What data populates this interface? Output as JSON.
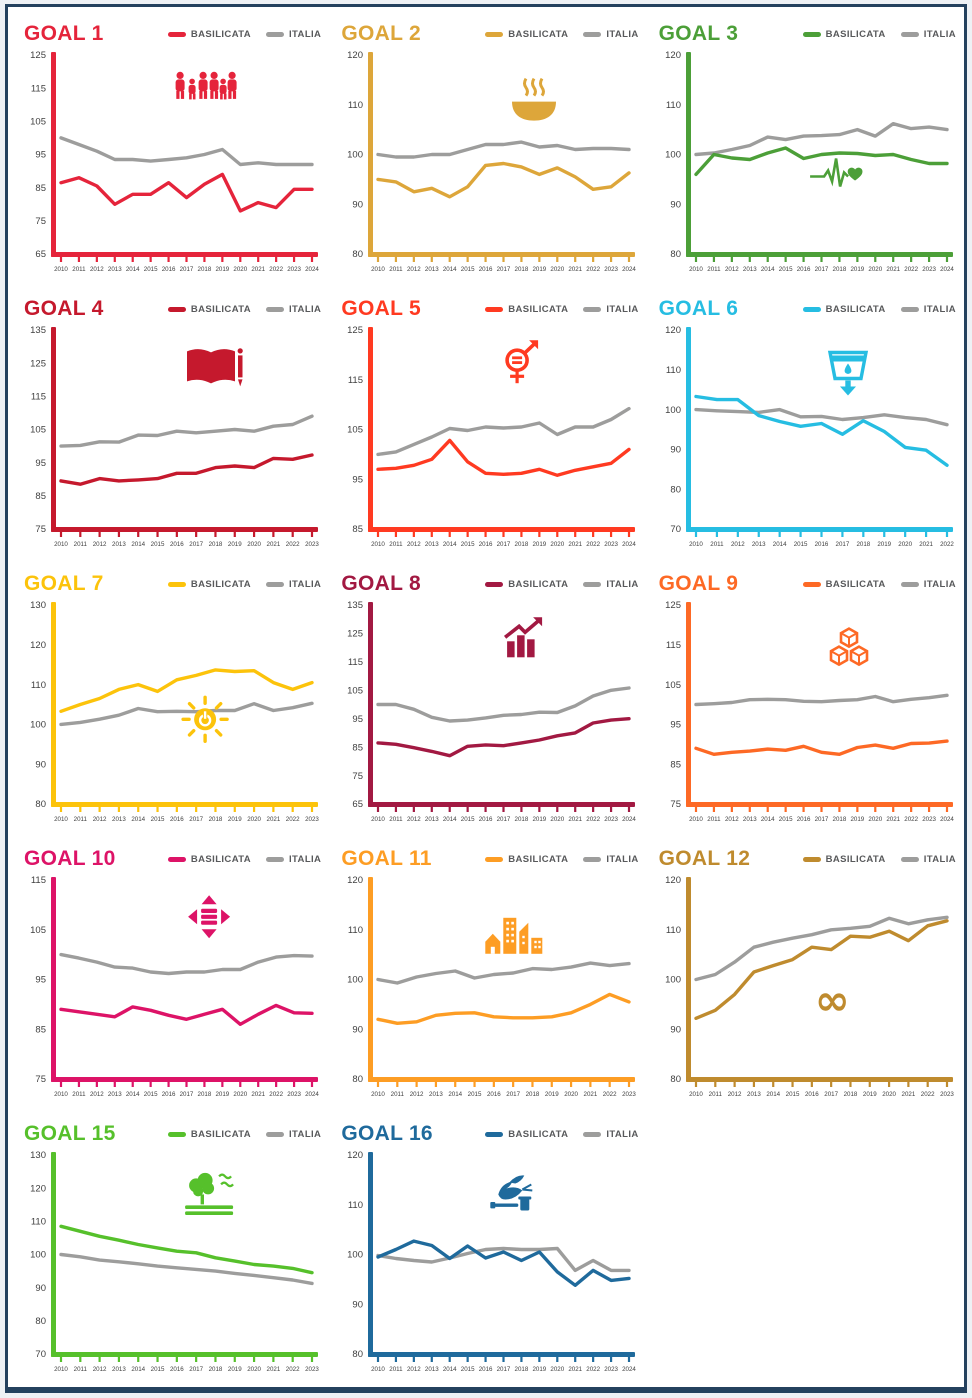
{
  "page": {
    "frame_color": "#24415e",
    "background": "#ffffff"
  },
  "legend": {
    "basilicata_label": "BASILICATA",
    "italia_label": "ITALIA",
    "italia_color": "#9d9d9c",
    "label_color": "#58595b"
  },
  "chart_data": [
    {
      "id": "goal-1",
      "title": "GOAL 1",
      "color": "#e5243b",
      "icon": "family-icon",
      "type": "line",
      "ylim": [
        65,
        125
      ],
      "yticks": [
        65,
        75,
        85,
        95,
        105,
        115,
        125
      ],
      "icon_x": 0.62,
      "icon_y": 0.1,
      "x": [
        "2010",
        "2011",
        "2012",
        "2013",
        "2014",
        "2015",
        "2016",
        "2017",
        "2018",
        "2019",
        "2020",
        "2021",
        "2022",
        "2023",
        "2024"
      ],
      "series": [
        {
          "name": "BASILICATA",
          "values": [
            86.5,
            88,
            85.5,
            80,
            83,
            83,
            86.5,
            82,
            86,
            89,
            78,
            80.5,
            79,
            84.5,
            84.5
          ]
        },
        {
          "name": "ITALIA",
          "values": [
            100,
            98,
            96,
            93.5,
            93.5,
            93,
            93.5,
            94,
            95,
            96.5,
            92,
            92.5,
            92,
            92,
            92
          ]
        }
      ]
    },
    {
      "id": "goal-2",
      "title": "GOAL 2",
      "color": "#dda63a",
      "icon": "bowl-icon",
      "type": "line",
      "ylim": [
        80,
        120
      ],
      "yticks": [
        80,
        90,
        100,
        110,
        120
      ],
      "icon_x": 0.68,
      "icon_y": 0.14,
      "x": [
        "2010",
        "2011",
        "2012",
        "2013",
        "2014",
        "2015",
        "2016",
        "2017",
        "2018",
        "2019",
        "2020",
        "2021",
        "2022",
        "2023",
        "2024"
      ],
      "series": [
        {
          "name": "BASILICATA",
          "values": [
            95,
            94.5,
            92.5,
            93.2,
            91.5,
            93.5,
            97.8,
            98.2,
            97.5,
            96,
            97.3,
            95.5,
            93,
            93.5,
            96.3
          ]
        },
        {
          "name": "ITALIA",
          "values": [
            100,
            99.5,
            99.5,
            100,
            100,
            101,
            102,
            102,
            102.5,
            101.5,
            101.8,
            101,
            101.2,
            101.2,
            101
          ]
        }
      ]
    },
    {
      "id": "goal-3",
      "title": "GOAL 3",
      "color": "#4c9f38",
      "icon": "heartbeat-icon",
      "type": "line",
      "ylim": [
        80,
        120
      ],
      "yticks": [
        80,
        90,
        100,
        110,
        120
      ],
      "icon_x": 0.62,
      "icon_y": 0.62,
      "x": [
        "2010",
        "2011",
        "2012",
        "2013",
        "2014",
        "2015",
        "2016",
        "2017",
        "2018",
        "2019",
        "2020",
        "2021",
        "2022",
        "2023",
        "2024"
      ],
      "series": [
        {
          "name": "BASILICATA",
          "values": [
            96,
            100,
            99.3,
            99,
            100.3,
            101.3,
            99.2,
            100,
            100.3,
            100.2,
            99.8,
            100,
            99,
            98.2,
            98.2
          ]
        },
        {
          "name": "ITALIA",
          "values": [
            100,
            100.3,
            101,
            101.8,
            103.5,
            103,
            103.7,
            103.8,
            104,
            105,
            103.7,
            106.2,
            105.2,
            105.5,
            105
          ]
        }
      ]
    },
    {
      "id": "goal-4",
      "title": "GOAL 4",
      "color": "#c5192d",
      "icon": "book-icon",
      "type": "line",
      "ylim": [
        75,
        135
      ],
      "yticks": [
        75,
        85,
        95,
        105,
        115,
        125,
        135
      ],
      "icon_x": 0.66,
      "icon_y": 0.1,
      "x": [
        "2010",
        "2011",
        "2012",
        "2013",
        "2014",
        "2015",
        "2016",
        "2017",
        "2018",
        "2019",
        "2020",
        "2021",
        "2022",
        "2023"
      ],
      "series": [
        {
          "name": "BASILICATA",
          "values": [
            89.5,
            88.5,
            90.2,
            89.5,
            89.8,
            90.2,
            91.8,
            91.8,
            93.5,
            94,
            93.5,
            96.3,
            96,
            97.3
          ]
        },
        {
          "name": "ITALIA",
          "values": [
            100,
            100.2,
            101.3,
            101.2,
            103.3,
            103.2,
            104.5,
            104,
            104.5,
            105,
            104.5,
            106,
            106.5,
            109
          ]
        }
      ]
    },
    {
      "id": "goal-5",
      "title": "GOAL 5",
      "color": "#ff3a21",
      "icon": "gender-icon",
      "type": "line",
      "ylim": [
        85,
        125
      ],
      "yticks": [
        85,
        95,
        105,
        115,
        125
      ],
      "icon_x": 0.62,
      "icon_y": 0.06,
      "x": [
        "2010",
        "2011",
        "2012",
        "2013",
        "2014",
        "2015",
        "2016",
        "2017",
        "2018",
        "2019",
        "2020",
        "2021",
        "2022",
        "2023",
        "2024"
      ],
      "series": [
        {
          "name": "BASILICATA",
          "values": [
            97,
            97.2,
            97.8,
            99,
            102.8,
            98.5,
            96.2,
            96,
            96.2,
            97,
            95.8,
            96.8,
            97.5,
            98.2,
            101
          ]
        },
        {
          "name": "ITALIA",
          "values": [
            100,
            100.5,
            102,
            103.5,
            105.2,
            104.8,
            105.5,
            105.3,
            105.5,
            106.3,
            104,
            105.5,
            105.5,
            107,
            109.2
          ]
        }
      ]
    },
    {
      "id": "goal-6",
      "title": "GOAL 6",
      "color": "#26bde2",
      "icon": "water-icon",
      "type": "line",
      "ylim": [
        70,
        120
      ],
      "yticks": [
        70,
        80,
        90,
        100,
        110,
        120
      ],
      "icon_x": 0.66,
      "icon_y": 0.12,
      "x": [
        "2010",
        "2011",
        "2012",
        "2013",
        "2014",
        "2015",
        "2016",
        "2017",
        "2018",
        "2019",
        "2020",
        "2021",
        "2022"
      ],
      "series": [
        {
          "name": "BASILICATA",
          "values": [
            103.3,
            102.5,
            102.5,
            98.5,
            97,
            95.8,
            96.5,
            93.8,
            97.2,
            94.5,
            90.5,
            89.8,
            86
          ]
        },
        {
          "name": "ITALIA",
          "values": [
            100,
            99.7,
            99.5,
            99.3,
            100,
            98.2,
            98.3,
            97.5,
            98,
            98.7,
            98,
            97.5,
            96.2
          ]
        }
      ]
    },
    {
      "id": "goal-7",
      "title": "GOAL 7",
      "color": "#fcc30b",
      "icon": "sun-icon",
      "type": "line",
      "ylim": [
        80,
        130
      ],
      "yticks": [
        80,
        90,
        100,
        110,
        120,
        130
      ],
      "icon_x": 0.62,
      "icon_y": 0.58,
      "x": [
        "2010",
        "2011",
        "2012",
        "2013",
        "2014",
        "2015",
        "2016",
        "2017",
        "2018",
        "2019",
        "2020",
        "2021",
        "2022",
        "2023"
      ],
      "series": [
        {
          "name": "BASILICATA",
          "values": [
            103.3,
            105,
            106.5,
            108.8,
            110,
            108.3,
            111.2,
            112.3,
            113.7,
            113.3,
            113.5,
            110.5,
            108.8,
            110.5
          ]
        },
        {
          "name": "ITALIA",
          "values": [
            100,
            100.5,
            101.3,
            102.3,
            104,
            103.2,
            103.3,
            103.2,
            103.5,
            103.5,
            105.2,
            103.5,
            104.2,
            105.3
          ]
        }
      ]
    },
    {
      "id": "goal-8",
      "title": "GOAL 8",
      "color": "#a21942",
      "icon": "growth-icon",
      "type": "line",
      "ylim": [
        65,
        135
      ],
      "yticks": [
        65,
        75,
        85,
        95,
        105,
        115,
        125,
        135
      ],
      "icon_x": 0.64,
      "icon_y": 0.08,
      "x": [
        "2010",
        "2011",
        "2012",
        "2013",
        "2014",
        "2015",
        "2016",
        "2017",
        "2018",
        "2019",
        "2020",
        "2021",
        "2022",
        "2023",
        "2024"
      ],
      "series": [
        {
          "name": "BASILICATA",
          "values": [
            86.5,
            86,
            84.8,
            83.5,
            82,
            85.3,
            85.8,
            85.5,
            86.5,
            87.5,
            89,
            90,
            93.5,
            94.5,
            95
          ]
        },
        {
          "name": "ITALIA",
          "values": [
            100,
            100,
            98.3,
            95.5,
            94.2,
            94.5,
            95.3,
            96.2,
            96.5,
            97.3,
            97.2,
            99.5,
            103,
            105,
            105.8
          ]
        }
      ]
    },
    {
      "id": "goal-9",
      "title": "GOAL 9",
      "color": "#fd6925",
      "icon": "cubes-icon",
      "type": "line",
      "ylim": [
        75,
        125
      ],
      "yticks": [
        75,
        85,
        95,
        105,
        115,
        125
      ],
      "icon_x": 0.66,
      "icon_y": 0.14,
      "x": [
        "2010",
        "2011",
        "2012",
        "2013",
        "2014",
        "2015",
        "2016",
        "2017",
        "2018",
        "2019",
        "2020",
        "2021",
        "2022",
        "2023",
        "2024"
      ],
      "series": [
        {
          "name": "BASILICATA",
          "values": [
            89,
            87.5,
            88,
            88.3,
            88.8,
            88.5,
            89.5,
            88,
            87.5,
            89.2,
            89.8,
            89,
            90.2,
            90.3,
            90.8
          ]
        },
        {
          "name": "ITALIA",
          "values": [
            100,
            100.2,
            100.5,
            101.2,
            101.3,
            101.2,
            100.8,
            100.7,
            101,
            101.2,
            102,
            100.7,
            101.3,
            101.7,
            102.3
          ]
        }
      ]
    },
    {
      "id": "goal-10",
      "title": "GOAL 10",
      "color": "#dd1367",
      "icon": "equality-icon",
      "type": "line",
      "ylim": [
        75,
        115
      ],
      "yticks": [
        75,
        85,
        95,
        105,
        115
      ],
      "icon_x": 0.64,
      "icon_y": 0.08,
      "x": [
        "2010",
        "2011",
        "2012",
        "2013",
        "2014",
        "2015",
        "2016",
        "2017",
        "2018",
        "2019",
        "2020",
        "2021",
        "2022",
        "2023",
        "2024"
      ],
      "series": [
        {
          "name": "BASILICATA",
          "values": [
            89,
            88.5,
            88,
            87.5,
            89.5,
            88.8,
            87.8,
            87,
            88,
            89,
            86,
            88,
            89.8,
            88.3,
            88.2
          ]
        },
        {
          "name": "ITALIA",
          "values": [
            100,
            99.3,
            98.5,
            97.5,
            97.3,
            96.5,
            96.2,
            96.5,
            96.5,
            97,
            97,
            98.5,
            99.5,
            99.8,
            99.7
          ]
        }
      ]
    },
    {
      "id": "goal-11",
      "title": "GOAL 11",
      "color": "#fd9d24",
      "icon": "city-icon",
      "type": "line",
      "ylim": [
        80,
        120
      ],
      "yticks": [
        80,
        90,
        100,
        110,
        120
      ],
      "icon_x": 0.58,
      "icon_y": 0.2,
      "x": [
        "2010",
        "2011",
        "2012",
        "2013",
        "2014",
        "2015",
        "2016",
        "2017",
        "2018",
        "2019",
        "2020",
        "2021",
        "2022",
        "2023"
      ],
      "series": [
        {
          "name": "BASILICATA",
          "values": [
            92,
            91.2,
            91.5,
            92.8,
            93.2,
            93.3,
            92.5,
            92.3,
            92.3,
            92.5,
            93.3,
            95,
            97,
            95.5
          ]
        },
        {
          "name": "ITALIA",
          "values": [
            100,
            99.3,
            100.5,
            101.2,
            101.7,
            100.3,
            101,
            101.3,
            102.2,
            102,
            102.5,
            103.3,
            102.8,
            103.2
          ]
        }
      ]
    },
    {
      "id": "goal-12",
      "title": "GOAL 12",
      "color": "#bf8b2e",
      "icon": "infinity-icon",
      "type": "line",
      "ylim": [
        80,
        120
      ],
      "yticks": [
        80,
        90,
        100,
        110,
        120
      ],
      "icon_x": 0.58,
      "icon_y": 0.64,
      "x": [
        "2010",
        "2011",
        "2012",
        "2013",
        "2014",
        "2015",
        "2016",
        "2017",
        "2018",
        "2019",
        "2020",
        "2021",
        "2022",
        "2023"
      ],
      "series": [
        {
          "name": "BASILICATA",
          "values": [
            92.2,
            93.8,
            97,
            101.5,
            102.8,
            104,
            106.5,
            106,
            108.7,
            108.5,
            109.7,
            107.8,
            110.8,
            111.8
          ]
        },
        {
          "name": "ITALIA",
          "values": [
            100,
            101,
            103.5,
            106.5,
            107.5,
            108.3,
            109,
            110,
            110.3,
            110.7,
            112.3,
            111.2,
            112,
            112.5
          ]
        }
      ]
    },
    {
      "id": "goal-15",
      "title": "GOAL 15",
      "color": "#56c02b",
      "icon": "tree-icon",
      "type": "line",
      "ylim": [
        70,
        130
      ],
      "yticks": [
        70,
        80,
        90,
        100,
        110,
        120,
        130
      ],
      "icon_x": 0.64,
      "icon_y": 0.1,
      "x": [
        "2010",
        "2011",
        "2012",
        "2013",
        "2014",
        "2015",
        "2016",
        "2017",
        "2018",
        "2019",
        "2020",
        "2021",
        "2022",
        "2023"
      ],
      "series": [
        {
          "name": "BASILICATA",
          "values": [
            108.5,
            107,
            105.5,
            104.3,
            103,
            102,
            101,
            100.5,
            99,
            98,
            97,
            96.5,
            95.8,
            94.5
          ]
        },
        {
          "name": "ITALIA",
          "values": [
            100,
            99.3,
            98.3,
            97.8,
            97.2,
            96.5,
            96,
            95.5,
            95,
            94.3,
            93.7,
            93,
            92.3,
            91.3
          ]
        }
      ]
    },
    {
      "id": "goal-16",
      "title": "GOAL 16",
      "color": "#1f6a9c",
      "icon": "dove-icon",
      "type": "line",
      "ylim": [
        80,
        120
      ],
      "yticks": [
        80,
        90,
        100,
        110,
        120
      ],
      "icon_x": 0.58,
      "icon_y": 0.12,
      "x": [
        "2010",
        "2011",
        "2012",
        "2013",
        "2014",
        "2015",
        "2016",
        "2017",
        "2018",
        "2019",
        "2020",
        "2021",
        "2022",
        "2023",
        "2024"
      ],
      "series": [
        {
          "name": "BASILICATA",
          "values": [
            99.5,
            101,
            102.7,
            101.8,
            99.2,
            101.7,
            99.3,
            100.5,
            98.8,
            100.5,
            96.5,
            93.8,
            96.8,
            94.8,
            95.2
          ]
        },
        {
          "name": "ITALIA",
          "values": [
            99.8,
            99.2,
            98.8,
            98.5,
            99.3,
            100.2,
            101,
            101.2,
            101,
            101,
            101.2,
            96.8,
            98.8,
            96.8,
            96.8
          ]
        }
      ]
    }
  ]
}
